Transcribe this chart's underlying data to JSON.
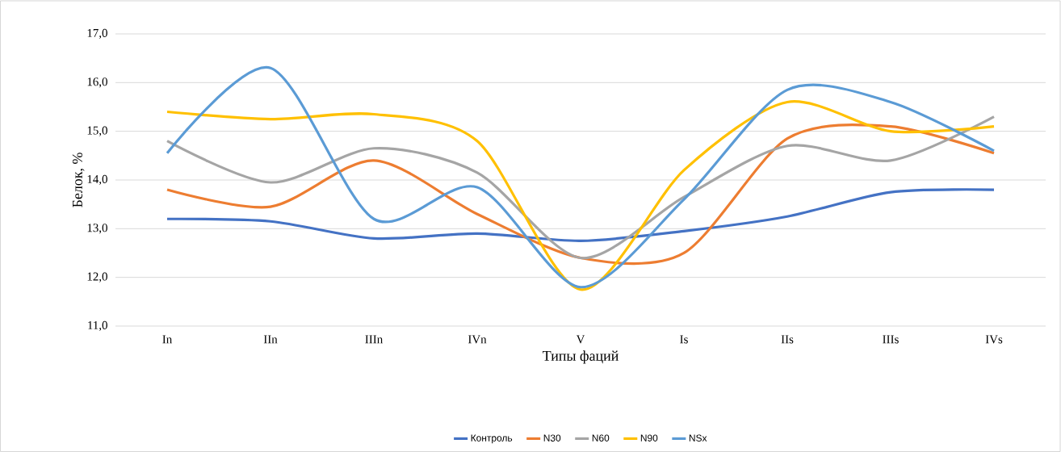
{
  "chart_data": {
    "type": "line",
    "xlabel": "Типы фаций",
    "ylabel": "Белок, %",
    "categories": [
      "In",
      "IIn",
      "IIIn",
      "IVn",
      "V",
      "Is",
      "IIs",
      "IIIs",
      "IVs"
    ],
    "series": [
      {
        "name": "Контроль",
        "color": "#4472c4",
        "values": [
          13.2,
          13.15,
          12.8,
          12.9,
          12.75,
          12.95,
          13.25,
          13.75,
          13.8
        ]
      },
      {
        "name": "N30",
        "color": "#ed7d31",
        "values": [
          13.8,
          13.45,
          14.4,
          13.3,
          12.4,
          12.5,
          14.85,
          15.1,
          14.55
        ]
      },
      {
        "name": "N60",
        "color": "#a5a5a5",
        "values": [
          14.8,
          13.95,
          14.65,
          14.15,
          12.4,
          13.65,
          14.7,
          14.4,
          15.3
        ]
      },
      {
        "name": "N90",
        "color": "#ffc000",
        "values": [
          15.4,
          15.25,
          15.35,
          14.8,
          11.75,
          14.2,
          15.6,
          15.0,
          15.1
        ]
      },
      {
        "name": "NSx",
        "color": "#5b9bd5",
        "values": [
          14.55,
          16.3,
          13.2,
          13.85,
          11.8,
          13.6,
          15.85,
          15.6,
          14.6
        ]
      }
    ],
    "ylim": [
      11,
      17
    ],
    "yticks": [
      {
        "value": 11,
        "label": "11,0"
      },
      {
        "value": 12,
        "label": "12,0"
      },
      {
        "value": 13,
        "label": "13,0"
      },
      {
        "value": 14,
        "label": "14,0"
      },
      {
        "value": 15,
        "label": "15,0"
      },
      {
        "value": 16,
        "label": "16,0"
      },
      {
        "value": 17,
        "label": "17,0"
      }
    ],
    "grid": "y",
    "legend": "bottom",
    "marker": "none",
    "line_style": "solid"
  }
}
